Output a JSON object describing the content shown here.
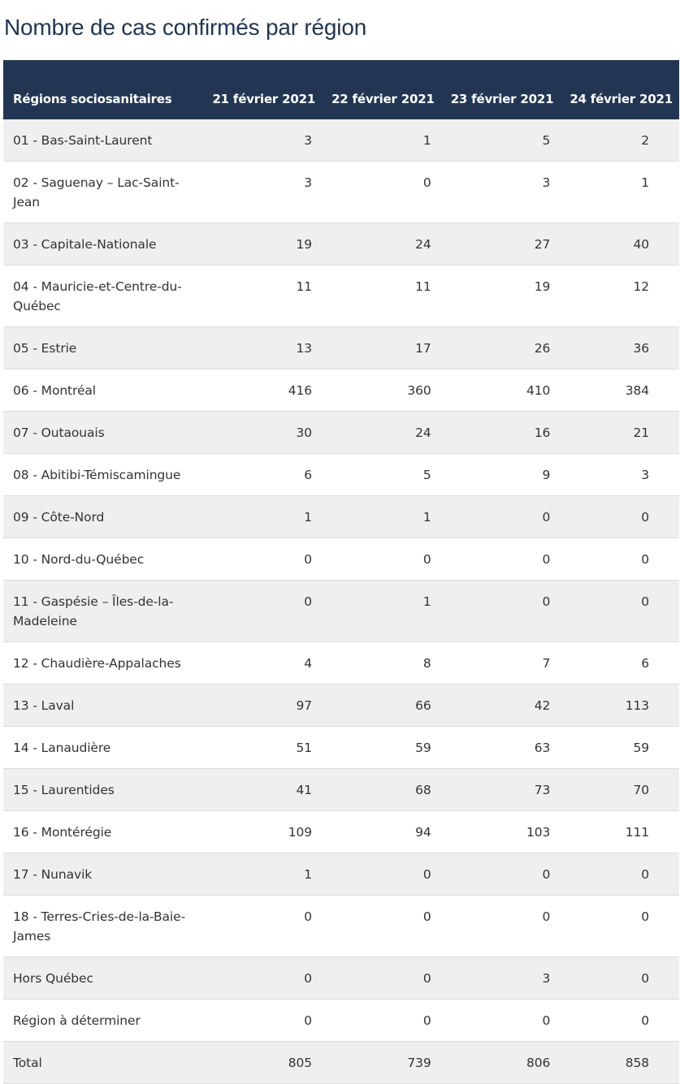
{
  "title": "Nombre de cas confirmés par région",
  "table": {
    "headers": [
      "Régions sociosanitaires",
      "21 février 2021",
      "22 février 2021",
      "23 février 2021",
      "24 février 2021"
    ],
    "rows": [
      [
        "01 - Bas-Saint-Laurent",
        "3",
        "1",
        "5",
        "2"
      ],
      [
        "02 - Saguenay – Lac-Saint-Jean",
        "3",
        "0",
        "3",
        "1"
      ],
      [
        "03 - Capitale-Nationale",
        "19",
        "24",
        "27",
        "40"
      ],
      [
        "04 - Mauricie-et-Centre-du-Québec",
        "11",
        "11",
        "19",
        "12"
      ],
      [
        "05 - Estrie",
        "13",
        "17",
        "26",
        "36"
      ],
      [
        "06 - Montréal",
        "416",
        "360",
        "410",
        "384"
      ],
      [
        "07 - Outaouais",
        "30",
        "24",
        "16",
        "21"
      ],
      [
        "08 - Abitibi-Témiscamingue",
        "6",
        "5",
        "9",
        "3"
      ],
      [
        "09 - Côte-Nord",
        "1",
        "1",
        "0",
        "0"
      ],
      [
        "10 - Nord-du-Québec",
        "0",
        "0",
        "0",
        "0"
      ],
      [
        "11 - Gaspésie – Îles-de-la-Madeleine",
        "0",
        "1",
        "0",
        "0"
      ],
      [
        "12 - Chaudière-Appalaches",
        "4",
        "8",
        "7",
        "6"
      ],
      [
        "13 - Laval",
        "97",
        "66",
        "42",
        "113"
      ],
      [
        "14 - Lanaudière",
        "51",
        "59",
        "63",
        "59"
      ],
      [
        "15 - Laurentides",
        "41",
        "68",
        "73",
        "70"
      ],
      [
        "16 - Montérégie",
        "109",
        "94",
        "103",
        "111"
      ],
      [
        "17 - Nunavik",
        "1",
        "0",
        "0",
        "0"
      ],
      [
        "18 - Terres-Cries-de-la-Baie-James",
        "0",
        "0",
        "0",
        "0"
      ],
      [
        "Hors Québec",
        "0",
        "0",
        "3",
        "0"
      ],
      [
        "Région à déterminer",
        "0",
        "0",
        "0",
        "0"
      ],
      [
        "Total",
        "805",
        "739",
        "806",
        "858"
      ]
    ]
  }
}
